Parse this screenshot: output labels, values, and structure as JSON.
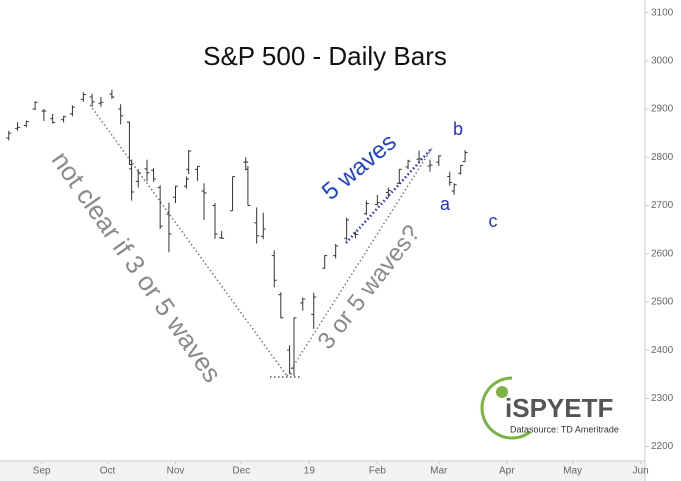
{
  "chart_data": {
    "type": "ohlc",
    "title": "S&P 500 - Daily Bars",
    "x": [
      -15,
      -11,
      -7,
      -3,
      1,
      5,
      10,
      14,
      19,
      23,
      27,
      32,
      36,
      40,
      41,
      44,
      48,
      51,
      54,
      58,
      61,
      66,
      67,
      71,
      74,
      79,
      82,
      87,
      93,
      94,
      98,
      101,
      106,
      109,
      113,
      115,
      119,
      124,
      129,
      134,
      139,
      143,
      148,
      153,
      158,
      163,
      167,
      172,
      177,
      181,
      186,
      188,
      191,
      193
    ],
    "open": [
      2840,
      2860,
      2866,
      2900,
      2896,
      2880,
      2878,
      2890,
      2920,
      2925,
      2912,
      2931,
      2900,
      2873,
      2776,
      2750,
      2776,
      2773,
      2737,
      2682,
      2717,
      2740,
      2775,
      2775,
      2730,
      2700,
      2633,
      2689,
      2790,
      2775,
      2664,
      2636,
      2596,
      2515,
      2400,
      2363,
      2498,
      2474,
      2570,
      2596,
      2632,
      2643,
      2683,
      2702,
      2727,
      2746,
      2780,
      2796,
      2782,
      2790,
      2760,
      2730,
      2767,
      2791
    ],
    "high": [
      2855,
      2873,
      2876,
      2916,
      2900,
      2890,
      2886,
      2908,
      2935,
      2932,
      2925,
      2940,
      2910,
      2874,
      2795,
      2775,
      2795,
      2778,
      2742,
      2706,
      2741,
      2760,
      2815,
      2781,
      2746,
      2705,
      2647,
      2760,
      2800,
      2782,
      2696,
      2685,
      2607,
      2520,
      2410,
      2467,
      2509,
      2519,
      2597,
      2620,
      2675,
      2646,
      2710,
      2722,
      2737,
      2775,
      2795,
      2814,
      2795,
      2804,
      2770,
      2746,
      2784,
      2815
    ],
    "low": [
      2835,
      2855,
      2862,
      2898,
      2875,
      2870,
      2872,
      2885,
      2915,
      2905,
      2905,
      2921,
      2868,
      2784,
      2710,
      2737,
      2750,
      2749,
      2651,
      2603,
      2705,
      2735,
      2765,
      2751,
      2670,
      2631,
      2631,
      2689,
      2773,
      2700,
      2621,
      2630,
      2530,
      2466,
      2351,
      2346,
      2482,
      2444,
      2569,
      2590,
      2627,
      2632,
      2680,
      2700,
      2716,
      2745,
      2775,
      2790,
      2770,
      2782,
      2741,
      2722,
      2764,
      2791
    ],
    "close": [
      2850,
      2862,
      2874,
      2914,
      2896,
      2872,
      2884,
      2904,
      2930,
      2915,
      2914,
      2925,
      2886,
      2785,
      2728,
      2768,
      2768,
      2755,
      2657,
      2641,
      2740,
      2755,
      2813,
      2781,
      2726,
      2641,
      2632,
      2760,
      2790,
      2700,
      2637,
      2651,
      2545,
      2467,
      2351,
      2467,
      2506,
      2510,
      2596,
      2616,
      2670,
      2640,
      2704,
      2706,
      2731,
      2775,
      2792,
      2797,
      2784,
      2803,
      2748,
      2743,
      2783,
      2810
    ],
    "color": "#333333",
    "xlim": [
      -19,
      275
    ],
    "xticks": [
      {
        "value": 0,
        "label": "Sep"
      },
      {
        "value": 30,
        "label": "Oct"
      },
      {
        "value": 61,
        "label": "Nov"
      },
      {
        "value": 91,
        "label": "Dec"
      },
      {
        "value": 122,
        "label": "19"
      },
      {
        "value": 153,
        "label": "Feb"
      },
      {
        "value": 181,
        "label": "Mar"
      },
      {
        "value": 212,
        "label": "Apr"
      },
      {
        "value": 242,
        "label": "May"
      },
      {
        "value": 273,
        "label": "Jun"
      }
    ],
    "ylim": [
      2170,
      3120
    ],
    "yticks": [
      2200,
      2300,
      2400,
      2500,
      2600,
      2700,
      2800,
      2900,
      3000,
      3100
    ],
    "annotations": [
      "not clear if 3 or 5 waves",
      "5 waves",
      "3 or 5 waves?",
      "a",
      "b",
      "c"
    ],
    "logo": "iSPYETF",
    "source": "Datasource: TD Ameritrade"
  }
}
